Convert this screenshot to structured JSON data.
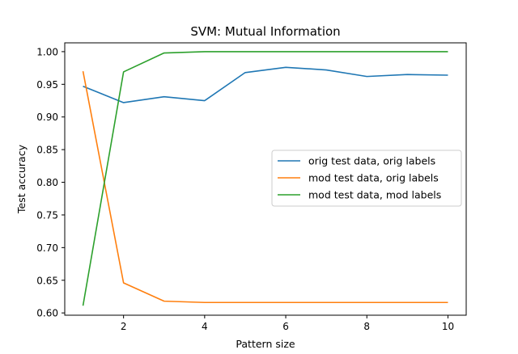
{
  "chart_data": {
    "type": "line",
    "title": "SVM: Mutual Information",
    "xlabel": "Pattern size",
    "ylabel": "Test accuracy",
    "x": [
      1,
      2,
      3,
      4,
      5,
      6,
      7,
      8,
      9,
      10
    ],
    "xlim": [
      0.55,
      10.45
    ],
    "ylim": [
      0.5965,
      1.0135
    ],
    "xticks": [
      2,
      4,
      6,
      8,
      10
    ],
    "xtick_labels": [
      "2",
      "4",
      "6",
      "8",
      "10"
    ],
    "yticks": [
      0.6,
      0.65,
      0.7,
      0.75,
      0.8,
      0.85,
      0.9,
      0.95,
      1.0
    ],
    "ytick_labels": [
      "0.60",
      "0.65",
      "0.70",
      "0.75",
      "0.80",
      "0.85",
      "0.90",
      "0.95",
      "1.00"
    ],
    "grid": false,
    "legend_position": "center-right",
    "series": [
      {
        "name": "orig test data, orig labels",
        "color": "#1f77b4",
        "values": [
          0.947,
          0.922,
          0.931,
          0.925,
          0.968,
          0.976,
          0.972,
          0.962,
          0.965,
          0.964
        ]
      },
      {
        "name": "mod test data, orig labels",
        "color": "#ff7f0e",
        "values": [
          0.97,
          0.646,
          0.618,
          0.616,
          0.616,
          0.616,
          0.616,
          0.616,
          0.616,
          0.616
        ]
      },
      {
        "name": "mod test data, mod labels",
        "color": "#2ca02c",
        "values": [
          0.611,
          0.969,
          0.998,
          1.0,
          1.0,
          1.0,
          1.0,
          1.0,
          1.0,
          1.0
        ]
      }
    ]
  }
}
